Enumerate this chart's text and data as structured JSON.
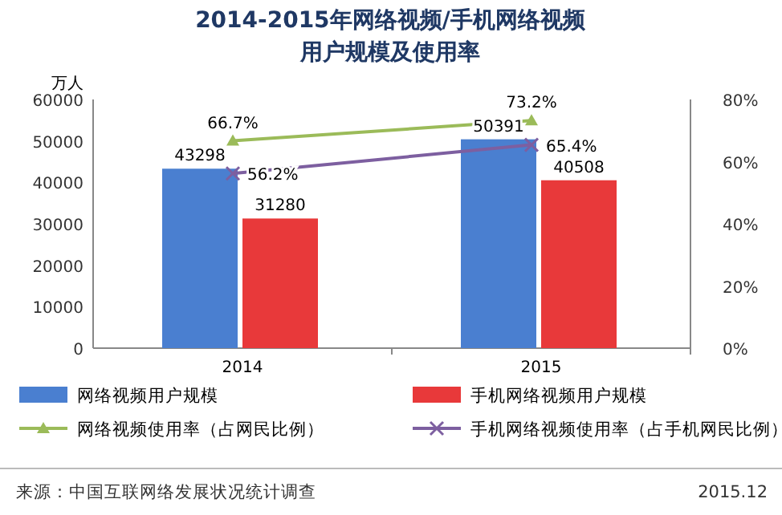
{
  "chart_data": {
    "type": "bar",
    "title": "2014-2015年网络视频/手机网络视频用户规模及使用率",
    "ylabel": "万人",
    "categories": [
      "2014",
      "2015"
    ],
    "ylim": [
      0,
      60000
    ],
    "yticks": [
      0,
      10000,
      20000,
      30000,
      40000,
      50000,
      60000
    ],
    "y2lim": [
      0,
      80
    ],
    "y2ticks": [
      {
        "value": 0,
        "label": "0%"
      },
      {
        "value": 20,
        "label": "20%"
      },
      {
        "value": 40,
        "label": "40%"
      },
      {
        "value": 60,
        "label": "60%"
      },
      {
        "value": 80,
        "label": "80%"
      }
    ],
    "legend": "bottom",
    "series": [
      {
        "name": "网络视频用户规模",
        "color": "#4a7fd0",
        "values": [
          43298,
          50391
        ],
        "value_labels": [
          "43298",
          "50391"
        ]
      },
      {
        "name": "手机网络视频用户规模",
        "color": "#e8393a",
        "values": [
          31280,
          40508
        ],
        "value_labels": [
          "31280",
          "40508"
        ]
      },
      {
        "name": "网络视频使用率（占网民比例）",
        "type": "line",
        "axis": "y2",
        "marker": "triangle",
        "color": "#9bbb59",
        "values": [
          66.7,
          73.2
        ],
        "value_labels": [
          "66.7%",
          "73.2%"
        ]
      },
      {
        "name": "手机网络视频使用率（占手机网民比例）",
        "type": "line",
        "axis": "y2",
        "marker": "cross",
        "color": "#7d5fa0",
        "values": [
          56.2,
          65.4
        ],
        "value_labels": [
          "56.2%",
          "65.4%"
        ]
      }
    ],
    "annotations": [
      "来源：中国互联网络发展状况统计调查",
      "2015.12"
    ]
  }
}
